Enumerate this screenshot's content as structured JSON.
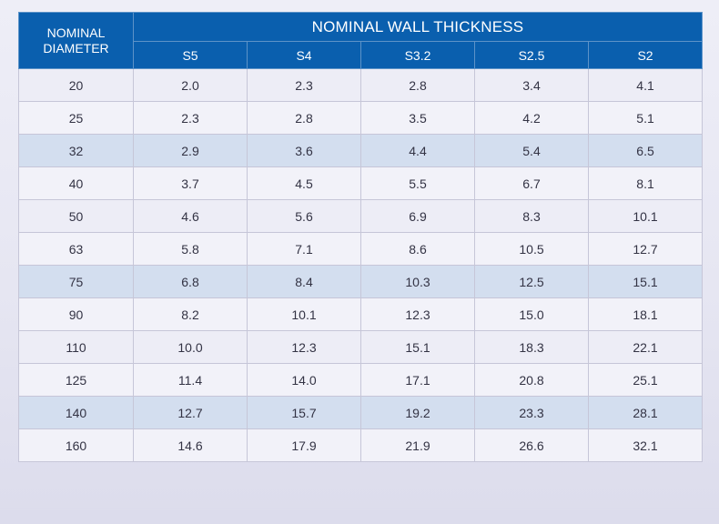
{
  "table": {
    "corner_header_line1": "NOMINAL",
    "corner_header_line2": "DIAMETER",
    "group_header": "NOMINAL WALL THICKNESS",
    "sub_headers": [
      "S5",
      "S4",
      "S3.2",
      "S2.5",
      "S2"
    ],
    "rows": [
      {
        "diameter": "20",
        "values": [
          "2.0",
          "2.3",
          "2.8",
          "3.4",
          "4.1"
        ]
      },
      {
        "diameter": "25",
        "values": [
          "2.3",
          "2.8",
          "3.5",
          "4.2",
          "5.1"
        ]
      },
      {
        "diameter": "32",
        "values": [
          "2.9",
          "3.6",
          "4.4",
          "5.4",
          "6.5"
        ]
      },
      {
        "diameter": "40",
        "values": [
          "3.7",
          "4.5",
          "5.5",
          "6.7",
          "8.1"
        ]
      },
      {
        "diameter": "50",
        "values": [
          "4.6",
          "5.6",
          "6.9",
          "8.3",
          "10.1"
        ]
      },
      {
        "diameter": "63",
        "values": [
          "5.8",
          "7.1",
          "8.6",
          "10.5",
          "12.7"
        ]
      },
      {
        "diameter": "75",
        "values": [
          "6.8",
          "8.4",
          "10.3",
          "12.5",
          "15.1"
        ]
      },
      {
        "diameter": "90",
        "values": [
          "8.2",
          "10.1",
          "12.3",
          "15.0",
          "18.1"
        ]
      },
      {
        "diameter": "110",
        "values": [
          "10.0",
          "12.3",
          "15.1",
          "18.3",
          "22.1"
        ]
      },
      {
        "diameter": "125",
        "values": [
          "11.4",
          "14.0",
          "17.1",
          "20.8",
          "25.1"
        ]
      },
      {
        "diameter": "140",
        "values": [
          "12.7",
          "15.7",
          "19.2",
          "23.3",
          "28.1"
        ]
      },
      {
        "diameter": "160",
        "values": [
          "14.6",
          "17.9",
          "21.9",
          "26.6",
          "32.1"
        ]
      }
    ]
  },
  "colors": {
    "header_blue": "#0a5fae",
    "highlight_row": "#d3deef",
    "light_row": "#ededf6"
  }
}
